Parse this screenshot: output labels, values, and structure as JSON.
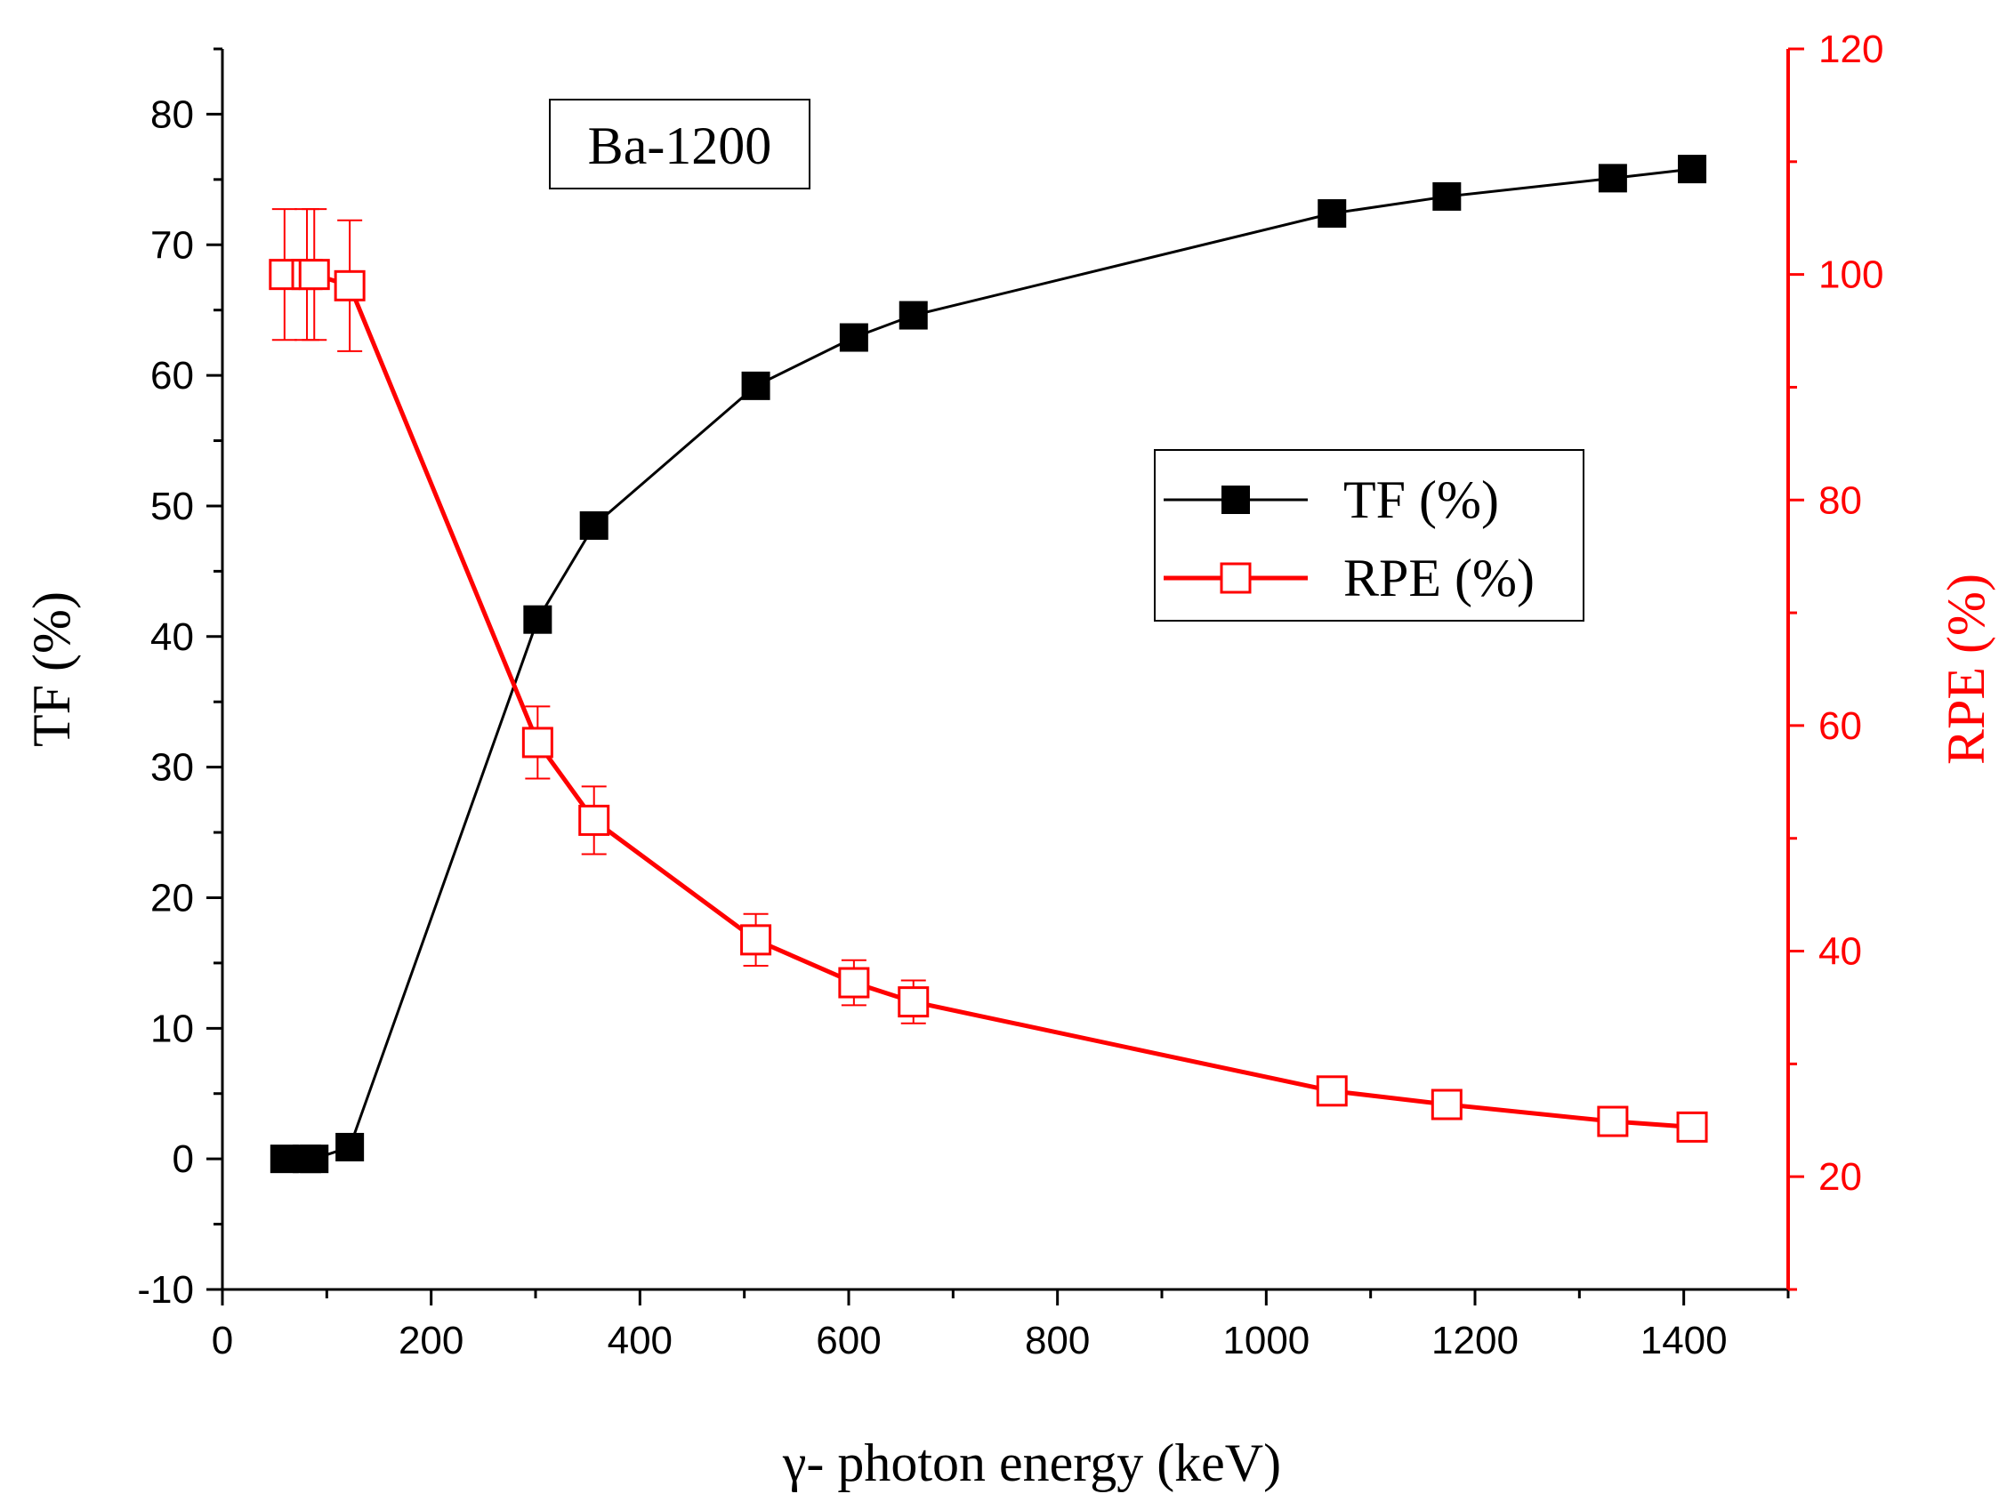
{
  "chart_data": {
    "type": "line",
    "annotation": "Ba-1200",
    "xlabel": "γ- photon energy (keV)",
    "ylabel_left": "TF (%)",
    "ylabel_right": "RPE (%)",
    "xlim": [
      0,
      1500
    ],
    "ylim_left": [
      -10,
      85
    ],
    "ylim_right": [
      10,
      120
    ],
    "x_ticks": [
      "0",
      "200",
      "400",
      "600",
      "800",
      "1000",
      "1200",
      "1400"
    ],
    "y_left_ticks": [
      "-10",
      "0",
      "10",
      "20",
      "30",
      "40",
      "50",
      "60",
      "70",
      "80"
    ],
    "y_right_ticks": [
      "20",
      "40",
      "60",
      "80",
      "100",
      "120"
    ],
    "legend_position": "upper-right-center",
    "colors": {
      "tf": "#000000",
      "rpe": "#ff0000"
    },
    "series": [
      {
        "name": "TF (%)",
        "axis": "left",
        "marker": "filled-square",
        "x": [
          59.5,
          81,
          88,
          122,
          302,
          356,
          511,
          605,
          662,
          1063,
          1173,
          1332,
          1408
        ],
        "values": [
          0.0,
          0.0,
          0.0,
          0.9,
          41.3,
          48.5,
          59.2,
          62.9,
          64.6,
          72.4,
          73.7,
          75.1,
          75.8
        ]
      },
      {
        "name": "RPE (%)",
        "axis": "right",
        "marker": "open-square",
        "x": [
          59.5,
          81,
          88,
          122,
          302,
          356,
          511,
          605,
          662,
          1063,
          1173,
          1332,
          1408
        ],
        "values": [
          100.0,
          100.0,
          100.0,
          99.0,
          58.5,
          51.6,
          41.0,
          37.2,
          35.5,
          27.6,
          26.4,
          24.9,
          24.4
        ],
        "errors": [
          5.8,
          5.8,
          5.8,
          5.8,
          3.2,
          3.0,
          2.3,
          2.0,
          1.9,
          1.0,
          0.9,
          0.8,
          0.8
        ]
      }
    ]
  }
}
